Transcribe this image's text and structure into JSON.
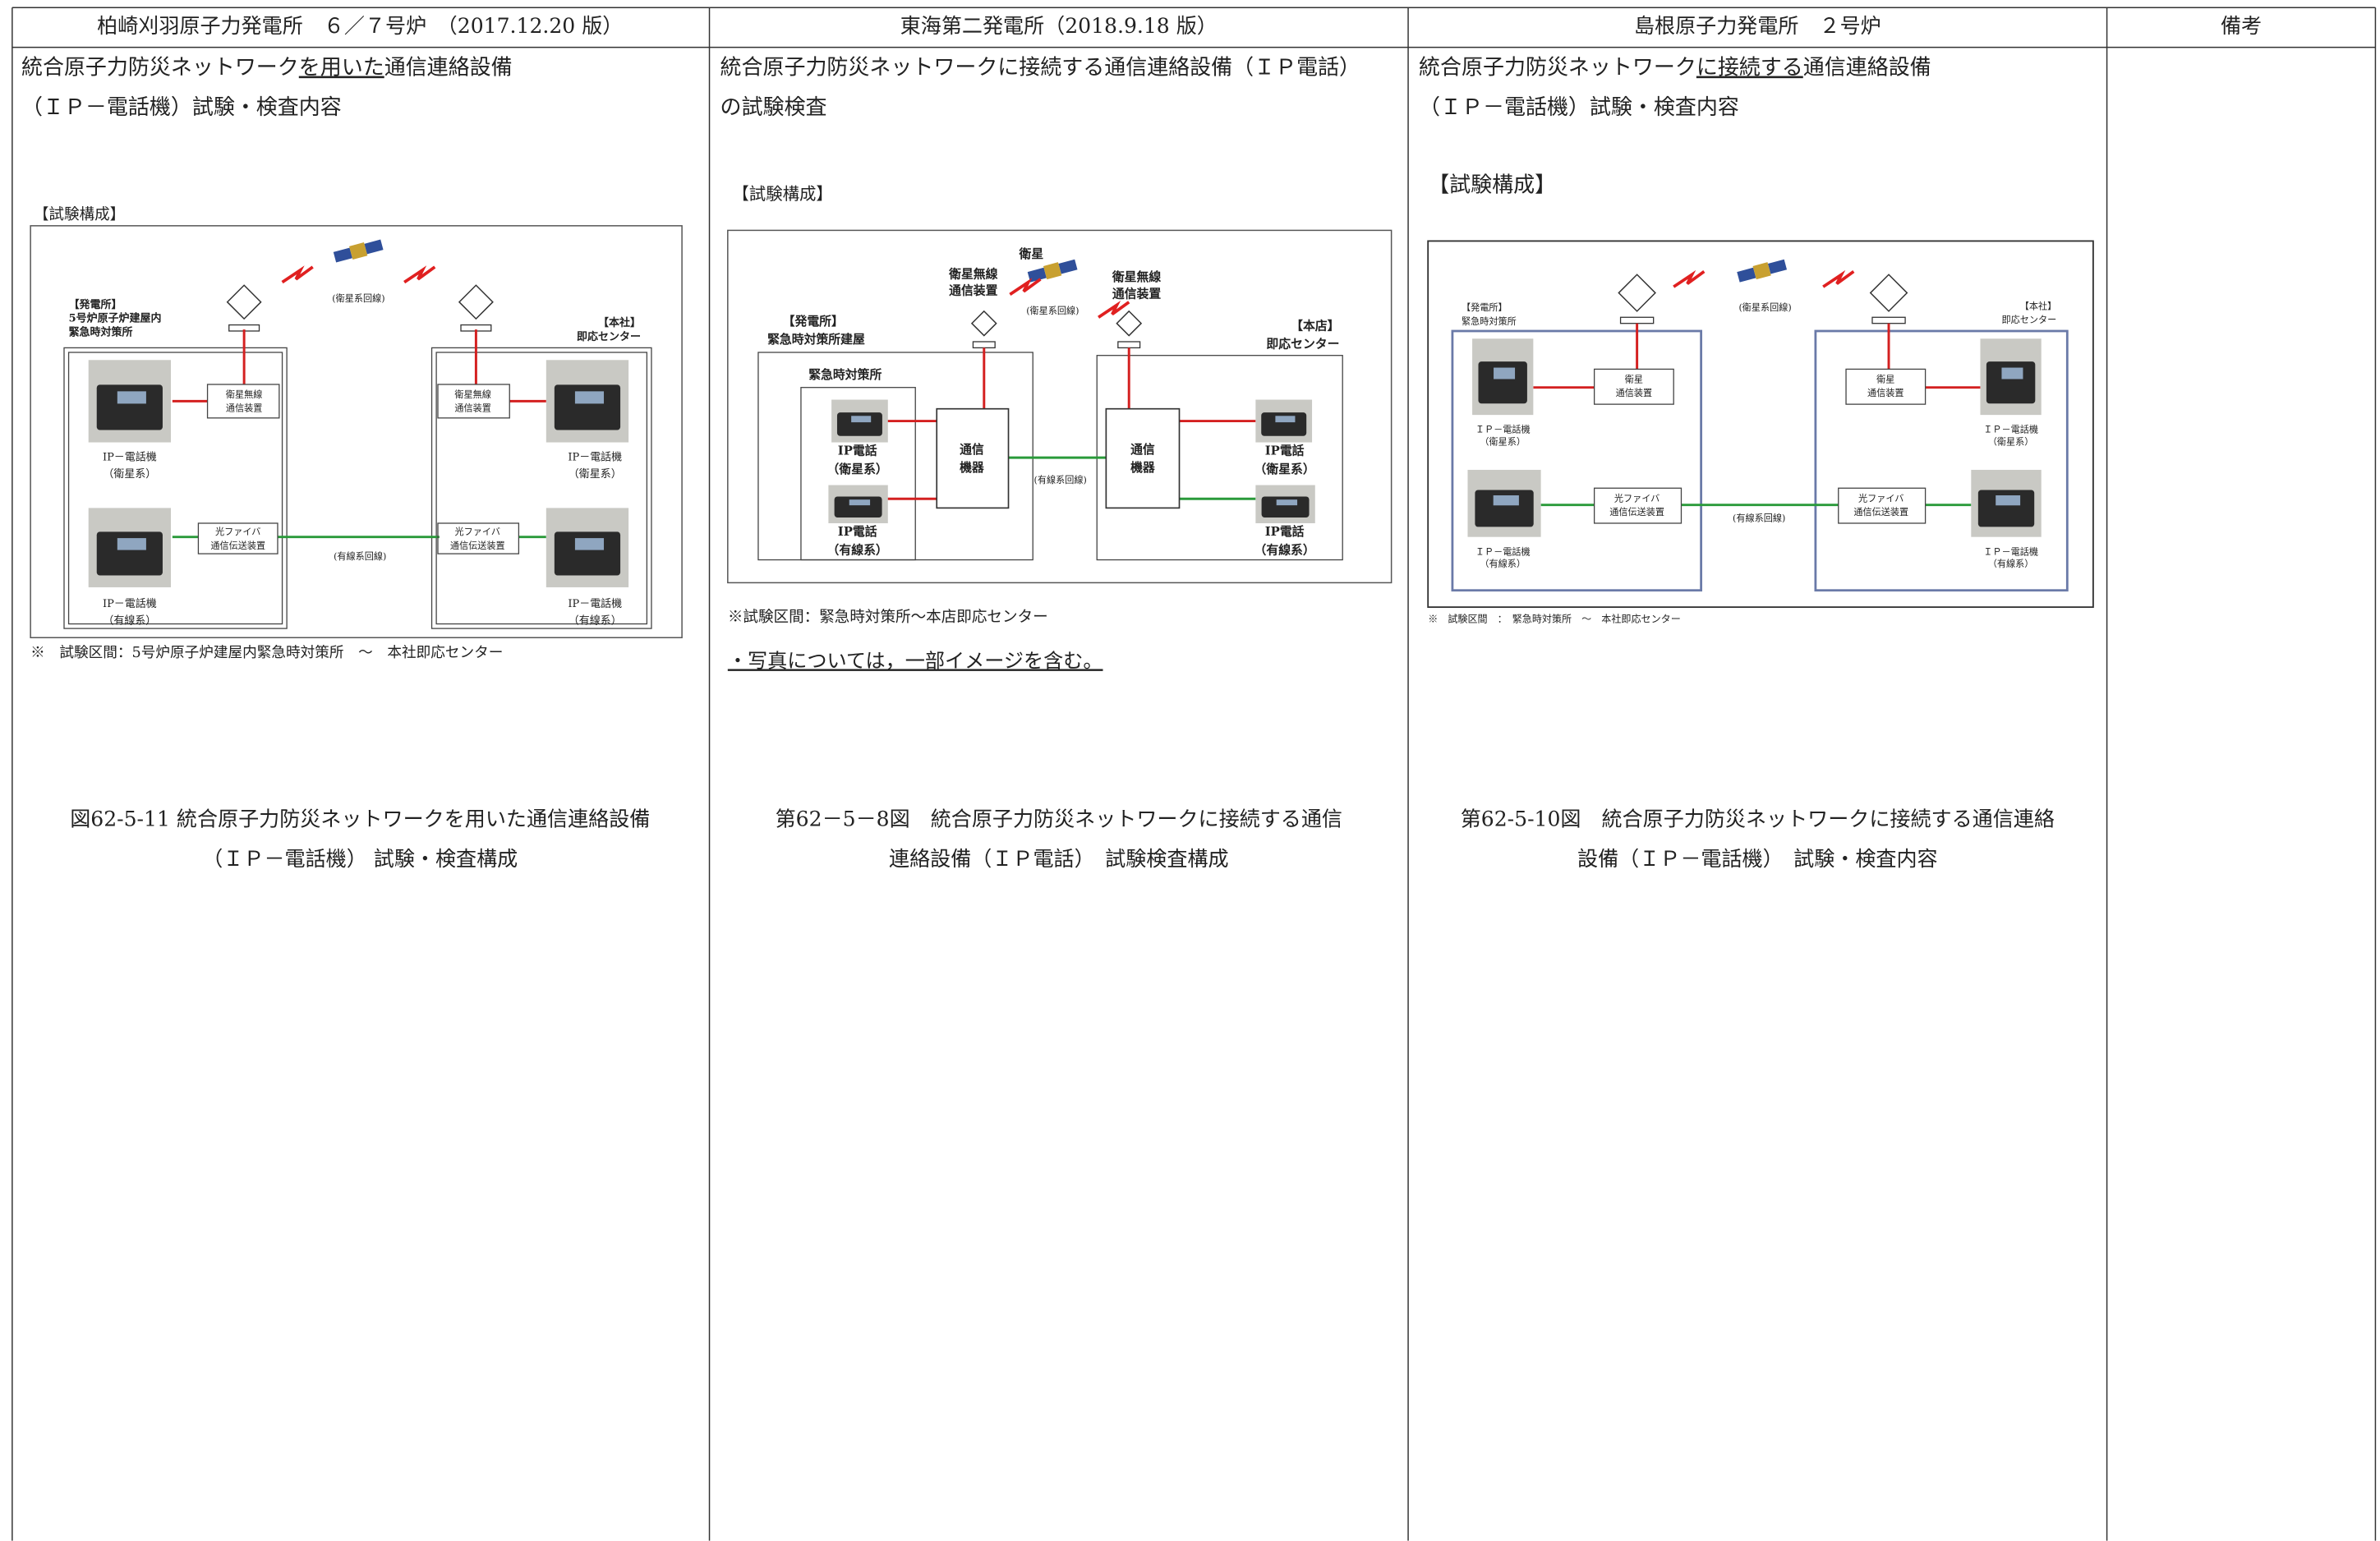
{
  "header": [
    "柏崎刈羽原子力発電所　６／７号炉　（2017.12.20 版）",
    "東海第二発電所（2018.9.18 版）",
    "島根原子力発電所　２号炉",
    "備考"
  ],
  "columns": [
    {
      "body": [
        [
          "統合原子力防災ネットワーク",
          "を用いた",
          "通信連絡設備"
        ],
        [
          "（ＩＰ－電話機）試験・検査内容"
        ]
      ],
      "section": "【試験構成】",
      "labels": [
        "(衛星系回線)",
        "【発電所】",
        "5号炉原子炉建屋内",
        "緊急時対策所",
        "【本社】",
        "即応センター",
        "衛星無線",
        "通信装置",
        "衛星無線",
        "通信装置",
        "IP－電話機",
        "（衛星系）",
        "IP－電話機",
        "（衛星系）",
        "光ファイバ",
        "通信伝送装置",
        "光ファイバ",
        "通信伝送装置",
        "(有線系回線)",
        "IP－電話機",
        "（有線系）",
        "IP－電話機",
        "（有線系）"
      ],
      "notes": [
        "※　試験区間：5号炉原子炉建屋内緊急時対策所　～　本社即応センター"
      ],
      "caption": [
        "図62-5-11 統合原子力防災ネットワークを用いた通信連絡設備",
        "（ＩＰ－電話機） 試験・検査構成"
      ]
    },
    {
      "body": [
        [
          "統合原子力防災ネットワークに接続する通信連絡設備（ＩＰ電話）"
        ],
        [
          "の試験検査"
        ]
      ],
      "section": "【試験構成】",
      "labels": [
        "衛星",
        "衛星無線",
        "通信装置",
        "(衛星系回線)",
        "衛星無線",
        "通信装置",
        "【発電所】",
        "緊急時対策所建屋",
        "緊急時対策所",
        "【本店】",
        "即応センター",
        "通信",
        "機器",
        "通信",
        "機器",
        "IP電話",
        "（衛星系）",
        "IP電話",
        "（衛星系）",
        "(有線系回線)",
        "IP電話",
        "（有線系）",
        "IP電話",
        "（有線系）"
      ],
      "notes": [
        "※試験区間：緊急時対策所～本店即応センター",
        "・写真については，一部イメージを含む。"
      ],
      "caption": [
        "第62－5－8図　統合原子力防災ネットワークに接続する通信",
        "連絡設備（ＩＰ電話）　試験検査構成"
      ]
    },
    {
      "body": [
        [
          "統合原子力防災ネットワーク",
          "に接続する",
          "通信連絡設備"
        ],
        [
          "（ＩＰ－電話機）試験・検査内容"
        ]
      ],
      "section": "【試験構成】",
      "labels": [
        "【発電所】",
        "緊急時対策所",
        "(衛星系回線)",
        "【本社】",
        "即応センター",
        "衛星",
        "通信装置",
        "衛星",
        "通信装置",
        "ＩＰ－電話機",
        "（衛星系）",
        "ＩＰ－電話機",
        "（衛星系）",
        "光ファイバ",
        "通信伝送装置",
        "(有線系回線)",
        "光ファイバ",
        "通信伝送装置",
        "ＩＰ－電話機",
        "（有線系）",
        "ＩＰ－電話機",
        "（有線系）"
      ],
      "notes": [
        "※　試験区間　：　緊急時対策所　～　本社即応センター"
      ],
      "caption": [
        "第62-5-10図　統合原子力防災ネットワークに接続する通信連絡",
        "設備（ＩＰ－電話機）　試験・検査内容"
      ]
    }
  ]
}
